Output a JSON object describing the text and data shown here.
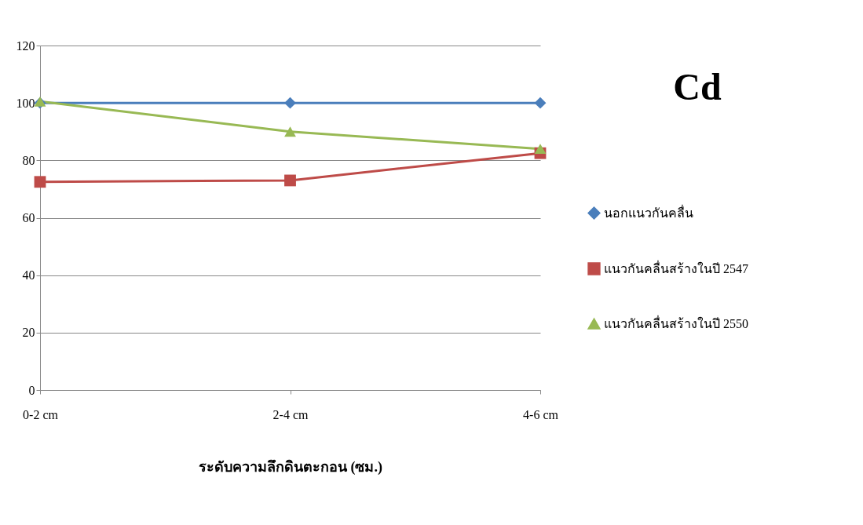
{
  "chart_data": {
    "type": "line",
    "title": "Cd",
    "xlabel": "ระดับความลึกดินตะกอน (ซม.)",
    "categories": [
      "0-2 cm",
      "2-4 cm",
      "4-6 cm"
    ],
    "series": [
      {
        "name": "นอกแนวกันคลื่น",
        "color": "#4a7ebb",
        "marker": "diamond",
        "values": [
          100,
          100,
          100
        ]
      },
      {
        "name": "แนวกันคลื่นสร้างในปี 2547",
        "color": "#be4b48",
        "marker": "square",
        "values": [
          72.5,
          73,
          82.5
        ]
      },
      {
        "name": "แนวกันคลื่นสร้างในปี 2550",
        "color": "#98b954",
        "marker": "triangle",
        "values": [
          100.5,
          90,
          84
        ]
      }
    ],
    "ylim": [
      0,
      120
    ],
    "yticks": [
      0,
      20,
      40,
      60,
      80,
      100,
      120
    ],
    "grid": "y",
    "legend": "right"
  }
}
